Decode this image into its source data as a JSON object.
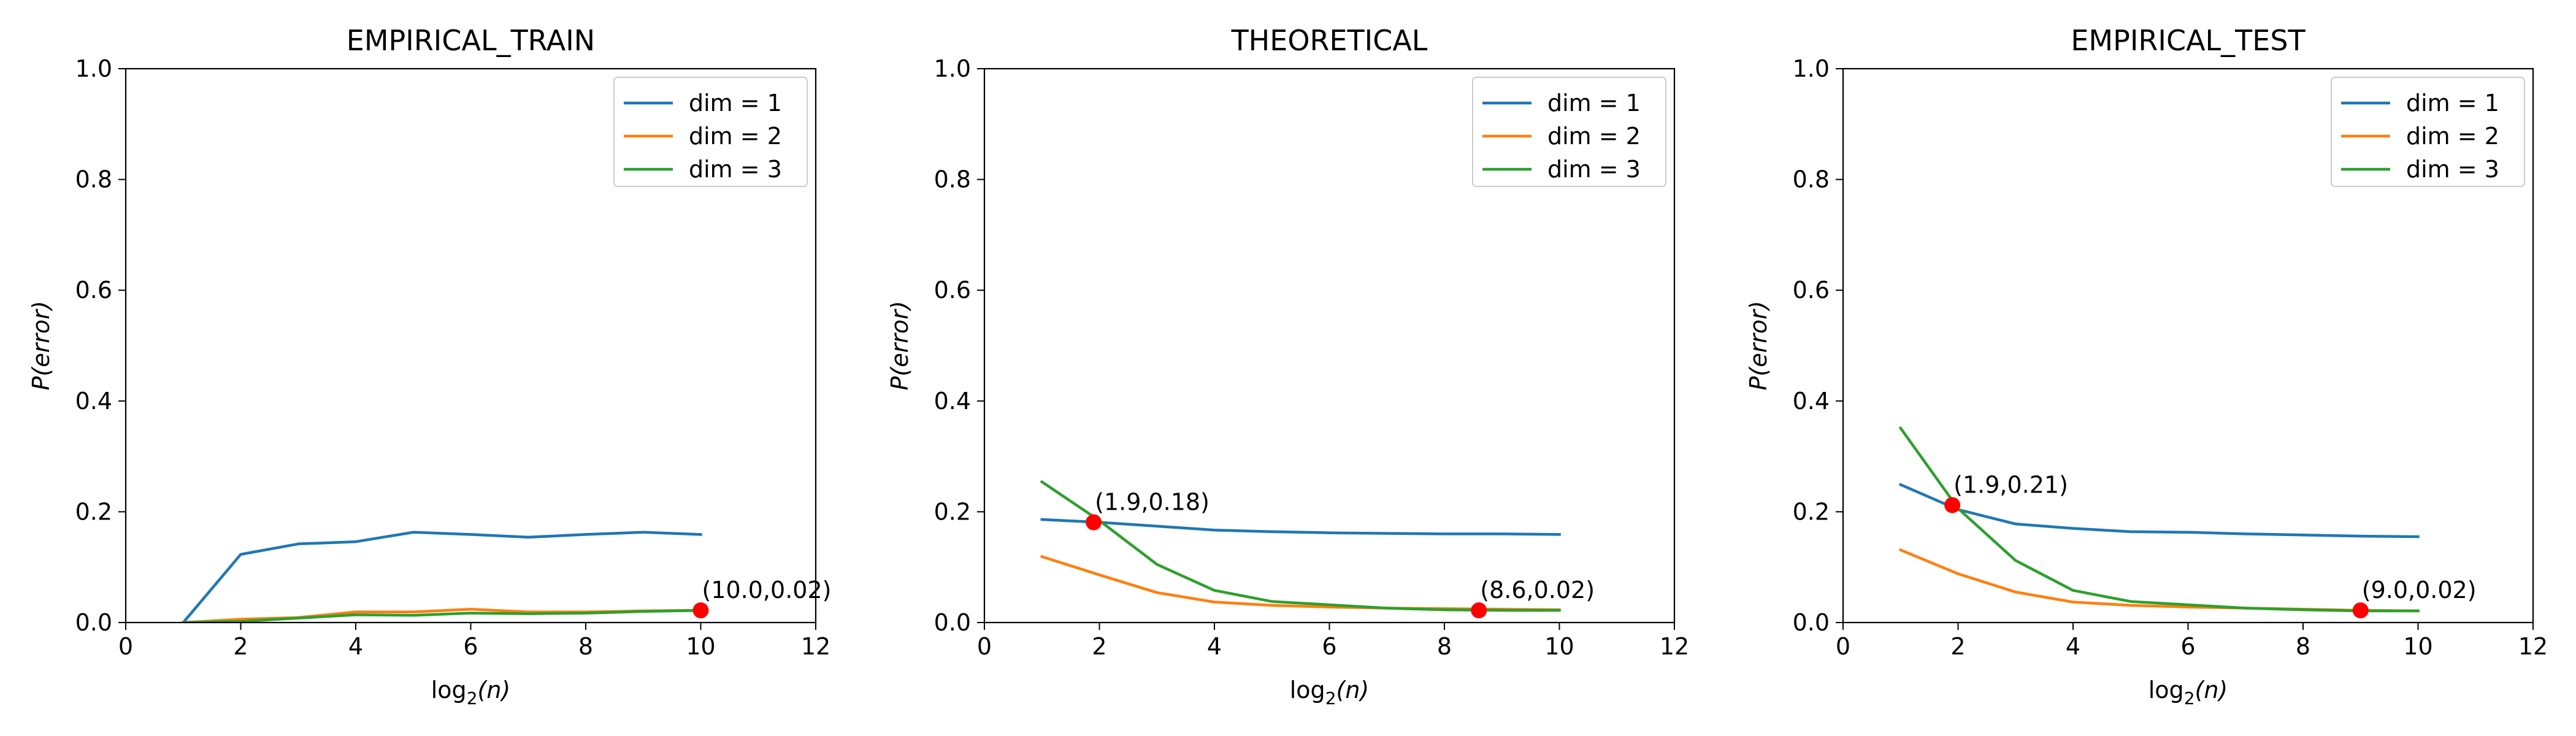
{
  "chart_data": [
    {
      "type": "line",
      "title": "EMPIRICAL_TRAIN",
      "xlabel": "log",
      "xlabel_sub": "2",
      "xlabel_tail": "(n)",
      "ylabel": "P(error)",
      "xlim": [
        0,
        12
      ],
      "ylim": [
        0,
        1.0
      ],
      "x_ticks": [
        "0",
        "2",
        "4",
        "6",
        "8",
        "10",
        "12"
      ],
      "y_ticks": [
        "0.0",
        "0.2",
        "0.4",
        "0.6",
        "0.8",
        "1.0"
      ],
      "grid": false,
      "legend_position": "top-right",
      "series": [
        {
          "name": "dim = 1",
          "color": "#1f77b4",
          "x": [
            1,
            2,
            3,
            4,
            5,
            6,
            7,
            8,
            9,
            10
          ],
          "y": [
            0.0,
            0.123,
            0.142,
            0.146,
            0.163,
            0.159,
            0.154,
            0.159,
            0.163,
            0.159
          ]
        },
        {
          "name": "dim = 2",
          "color": "#ff7f0e",
          "x": [
            1,
            2,
            3,
            4,
            5,
            6,
            7,
            8,
            9,
            10
          ],
          "y": [
            0.0,
            0.006,
            0.009,
            0.019,
            0.019,
            0.024,
            0.019,
            0.019,
            0.021,
            0.022
          ]
        },
        {
          "name": "dim = 3",
          "color": "#2ca02c",
          "x": [
            1,
            2,
            3,
            4,
            5,
            6,
            7,
            8,
            9,
            10
          ],
          "y": [
            0.0,
            0.002,
            0.008,
            0.014,
            0.013,
            0.017,
            0.016,
            0.017,
            0.02,
            0.022
          ]
        }
      ],
      "markers": [
        {
          "x": 10.0,
          "y": 0.022,
          "label": "(10.0,0.02)",
          "color": "#ff0000"
        }
      ]
    },
    {
      "type": "line",
      "title": "THEORETICAL",
      "xlabel": "log",
      "xlabel_sub": "2",
      "xlabel_tail": "(n)",
      "ylabel": "P(error)",
      "xlim": [
        0,
        12
      ],
      "ylim": [
        0,
        1.0
      ],
      "x_ticks": [
        "0",
        "2",
        "4",
        "6",
        "8",
        "10",
        "12"
      ],
      "y_ticks": [
        "0.0",
        "0.2",
        "0.4",
        "0.6",
        "0.8",
        "1.0"
      ],
      "grid": false,
      "legend_position": "top-right",
      "series": [
        {
          "name": "dim = 1",
          "color": "#1f77b4",
          "x": [
            1,
            2,
            3,
            4,
            5,
            6,
            7,
            8,
            9,
            10
          ],
          "y": [
            0.186,
            0.181,
            0.174,
            0.167,
            0.164,
            0.162,
            0.161,
            0.16,
            0.16,
            0.159
          ]
        },
        {
          "name": "dim = 2",
          "color": "#ff7f0e",
          "x": [
            1,
            2,
            3,
            4,
            5,
            6,
            7,
            8,
            9,
            10
          ],
          "y": [
            0.119,
            0.086,
            0.054,
            0.037,
            0.031,
            0.028,
            0.026,
            0.025,
            0.024,
            0.023
          ]
        },
        {
          "name": "dim = 3",
          "color": "#2ca02c",
          "x": [
            1,
            2,
            3,
            4,
            5,
            6,
            7,
            8,
            9,
            10
          ],
          "y": [
            0.254,
            0.184,
            0.105,
            0.058,
            0.038,
            0.032,
            0.026,
            0.023,
            0.022,
            0.022
          ]
        }
      ],
      "markers": [
        {
          "x": 1.9,
          "y": 0.181,
          "label": "(1.9,0.18)",
          "color": "#ff0000"
        },
        {
          "x": 8.6,
          "y": 0.022,
          "label": "(8.6,0.02)",
          "color": "#ff0000"
        }
      ]
    },
    {
      "type": "line",
      "title": "EMPIRICAL_TEST",
      "xlabel": "log",
      "xlabel_sub": "2",
      "xlabel_tail": "(n)",
      "ylabel": "P(error)",
      "xlim": [
        0,
        12
      ],
      "ylim": [
        0,
        1.0
      ],
      "x_ticks": [
        "0",
        "2",
        "4",
        "6",
        "8",
        "10",
        "12"
      ],
      "y_ticks": [
        "0.0",
        "0.2",
        "0.4",
        "0.6",
        "0.8",
        "1.0"
      ],
      "grid": false,
      "legend_position": "top-right",
      "series": [
        {
          "name": "dim = 1",
          "color": "#1f77b4",
          "x": [
            1,
            2,
            3,
            4,
            5,
            6,
            7,
            8,
            9,
            10
          ],
          "y": [
            0.249,
            0.204,
            0.178,
            0.17,
            0.164,
            0.163,
            0.16,
            0.158,
            0.156,
            0.155
          ]
        },
        {
          "name": "dim = 2",
          "color": "#ff7f0e",
          "x": [
            1,
            2,
            3,
            4,
            5,
            6,
            7,
            8,
            9,
            10
          ],
          "y": [
            0.131,
            0.088,
            0.055,
            0.037,
            0.031,
            0.028,
            0.026,
            0.024,
            0.022,
            0.021
          ]
        },
        {
          "name": "dim = 3",
          "color": "#2ca02c",
          "x": [
            1,
            2,
            3,
            4,
            5,
            6,
            7,
            8,
            9,
            10
          ],
          "y": [
            0.351,
            0.206,
            0.112,
            0.058,
            0.038,
            0.032,
            0.026,
            0.023,
            0.021,
            0.021
          ]
        }
      ],
      "markers": [
        {
          "x": 1.9,
          "y": 0.212,
          "label": "(1.9,0.21)",
          "color": "#ff0000"
        },
        {
          "x": 9.0,
          "y": 0.022,
          "label": "(9.0,0.02)",
          "color": "#ff0000"
        }
      ]
    }
  ]
}
